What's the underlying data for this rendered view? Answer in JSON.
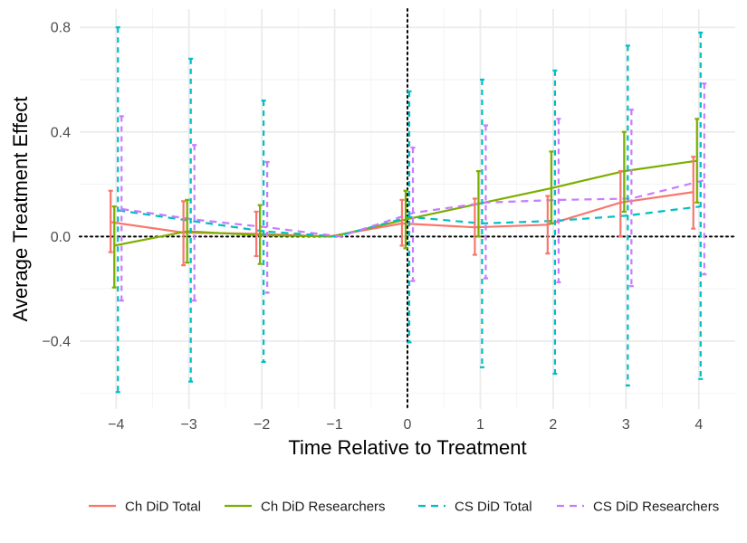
{
  "chart_data": {
    "type": "line",
    "title": "",
    "xlabel": "Time Relative to Treatment",
    "ylabel": "Average Treatment Effect",
    "x": [
      -4,
      -3,
      -2,
      -1,
      0,
      1,
      2,
      3,
      4
    ],
    "x_tick_labels": [
      "−4",
      "−3",
      "−2",
      "−1",
      "0",
      "1",
      "2",
      "3",
      "4"
    ],
    "y_ticks": [
      -0.4,
      0.0,
      0.4,
      0.8
    ],
    "y_tick_labels": [
      "−0.4",
      "0.0",
      "0.4",
      "0.8"
    ],
    "xlim": [
      -4.5,
      4.5
    ],
    "ylim": [
      -0.66,
      0.87
    ],
    "grid": true,
    "reference_lines": {
      "vertical_x": 0,
      "horizontal_y": 0,
      "style": "dotted"
    },
    "legend_position": "bottom",
    "series": [
      {
        "name": "Ch DiD Total",
        "color": "#F8766D",
        "dash": "solid",
        "values": [
          0.055,
          0.015,
          0.01,
          0.0,
          0.05,
          0.035,
          0.045,
          0.13,
          0.17
        ],
        "lower": [
          -0.06,
          -0.11,
          -0.075,
          0.0,
          -0.035,
          -0.07,
          -0.065,
          0.0,
          0.03
        ],
        "upper": [
          0.175,
          0.135,
          0.095,
          0.0,
          0.14,
          0.145,
          0.155,
          0.25,
          0.305
        ]
      },
      {
        "name": "Ch DiD Researchers",
        "color": "#7CAE00",
        "dash": "solid",
        "values": [
          -0.035,
          0.02,
          0.005,
          0.0,
          0.065,
          0.125,
          0.185,
          0.25,
          0.29
        ],
        "lower": [
          -0.195,
          -0.1,
          -0.105,
          0.0,
          -0.045,
          0.0,
          0.05,
          0.095,
          0.13
        ],
        "upper": [
          0.115,
          0.14,
          0.12,
          0.0,
          0.175,
          0.25,
          0.325,
          0.4,
          0.45
        ]
      },
      {
        "name": "CS DiD Total",
        "color": "#00BFC4",
        "dash": "dashed",
        "values": [
          0.1,
          0.06,
          0.02,
          0.0,
          0.075,
          0.05,
          0.06,
          0.08,
          0.115
        ],
        "lower": [
          -0.595,
          -0.555,
          -0.48,
          0.0,
          -0.405,
          -0.5,
          -0.525,
          -0.57,
          -0.545
        ],
        "upper": [
          0.8,
          0.68,
          0.52,
          0.0,
          0.555,
          0.6,
          0.635,
          0.73,
          0.78
        ]
      },
      {
        "name": "CS DiD Researchers",
        "color": "#C77CFF",
        "dash": "dashed",
        "values": [
          0.105,
          0.065,
          0.035,
          0.0,
          0.09,
          0.13,
          0.14,
          0.145,
          0.215
        ],
        "lower": [
          -0.245,
          -0.245,
          -0.215,
          0.0,
          -0.17,
          -0.16,
          -0.175,
          -0.19,
          -0.145
        ],
        "upper": [
          0.46,
          0.35,
          0.285,
          0.0,
          0.34,
          0.425,
          0.45,
          0.485,
          0.585
        ]
      }
    ]
  }
}
